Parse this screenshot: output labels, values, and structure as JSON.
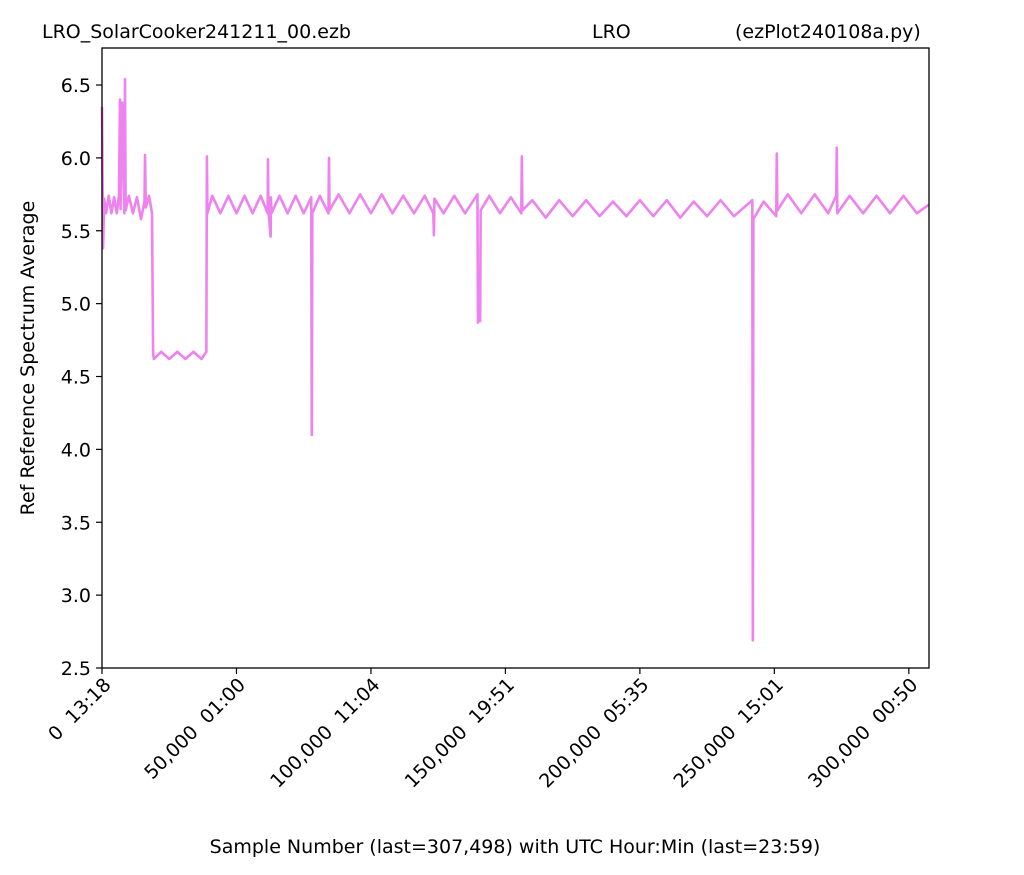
{
  "chart_data": {
    "type": "line",
    "title": "LRO_SolarCooker241211_00.ezb",
    "subtitle": "LRO",
    "annotation": "(ezPlot240108a.py)",
    "xlabel": "Sample Number (last=307,498) with UTC Hour:Min (last=23:59)",
    "ylabel": "Ref Reference Spectrum Average",
    "xlim": [
      0,
      307498
    ],
    "ylim": [
      2.5,
      6.754
    ],
    "xticks": [
      {
        "value": 0,
        "label": "0  13:18"
      },
      {
        "value": 50000,
        "label": "50,000  01:00"
      },
      {
        "value": 100000,
        "label": "100,000  11:04"
      },
      {
        "value": 150000,
        "label": "150,000  19:51"
      },
      {
        "value": 200000,
        "label": "200,000  05:35"
      },
      {
        "value": 250000,
        "label": "250,000  15:01"
      },
      {
        "value": 300000,
        "label": "300,000  00:50"
      }
    ],
    "yticks": [
      2.5,
      {
        "value": 3,
        "label": "3.0"
      },
      3.5,
      {
        "value": 4,
        "label": "4.0"
      },
      4.5,
      {
        "value": 5,
        "label": "5.0"
      },
      5.5,
      {
        "value": 6,
        "label": "6.0"
      },
      6.5
    ],
    "grid": false,
    "x": [
      0,
      400,
      800,
      1500,
      2500,
      3500,
      4500,
      5500,
      6300,
      6700,
      6900,
      7500,
      8300,
      8550,
      8800,
      10000,
      11500,
      13000,
      14500,
      15800,
      16000,
      16300,
      17500,
      18600,
      19000,
      19300,
      22000,
      25000,
      28000,
      31000,
      34000,
      37000,
      38800,
      39000,
      39200,
      41000,
      44000,
      47000,
      50000,
      53000,
      56000,
      59000,
      61600,
      61700,
      61900,
      62700,
      62800,
      63000,
      66000,
      69000,
      72000,
      75000,
      77800,
      78000,
      78200,
      81000,
      84200,
      84400,
      84600,
      88000,
      92000,
      96000,
      100000,
      104000,
      108000,
      112000,
      116000,
      120000,
      123200,
      123400,
      123600,
      127000,
      131000,
      135000,
      139600,
      139800,
      140300,
      140600,
      140800,
      144000,
      148000,
      152000,
      155900,
      156100,
      156300,
      160000,
      165000,
      170000,
      175000,
      180000,
      185000,
      190000,
      195000,
      200000,
      205000,
      210000,
      215000,
      220000,
      225000,
      230000,
      235000,
      241800,
      242000,
      242200,
      246000,
      250700,
      250900,
      251100,
      255000,
      260000,
      265000,
      270000,
      273000,
      273200,
      273400,
      278000,
      283000,
      288000,
      293000,
      298000,
      303000,
      307498
    ],
    "series": [
      {
        "color": "#ee82ee",
        "values": [
          6.35,
          5.38,
          5.72,
          5.62,
          5.74,
          5.62,
          5.73,
          5.62,
          5.74,
          6.4,
          5.65,
          6.38,
          5.62,
          6.54,
          5.64,
          5.74,
          5.62,
          5.73,
          5.58,
          5.7,
          6.02,
          5.66,
          5.74,
          5.62,
          4.66,
          4.62,
          4.67,
          4.62,
          4.67,
          4.62,
          4.67,
          4.62,
          4.67,
          6.01,
          5.62,
          5.74,
          5.62,
          5.74,
          5.62,
          5.74,
          5.62,
          5.74,
          5.62,
          5.99,
          5.64,
          5.46,
          5.73,
          5.62,
          5.74,
          5.62,
          5.74,
          5.62,
          5.73,
          4.1,
          5.62,
          5.74,
          5.62,
          6.0,
          5.64,
          5.75,
          5.62,
          5.75,
          5.62,
          5.75,
          5.62,
          5.74,
          5.62,
          5.74,
          5.62,
          5.47,
          5.72,
          5.62,
          5.74,
          5.62,
          5.75,
          4.87,
          5.0,
          4.88,
          5.64,
          5.74,
          5.62,
          5.73,
          5.62,
          6.01,
          5.64,
          5.71,
          5.59,
          5.71,
          5.6,
          5.71,
          5.6,
          5.7,
          5.6,
          5.71,
          5.6,
          5.71,
          5.59,
          5.7,
          5.6,
          5.71,
          5.6,
          5.71,
          2.69,
          5.58,
          5.7,
          5.6,
          6.03,
          5.64,
          5.75,
          5.62,
          5.75,
          5.62,
          5.74,
          6.07,
          5.62,
          5.74,
          5.62,
          5.74,
          5.62,
          5.74,
          5.62,
          5.68
        ]
      }
    ]
  }
}
